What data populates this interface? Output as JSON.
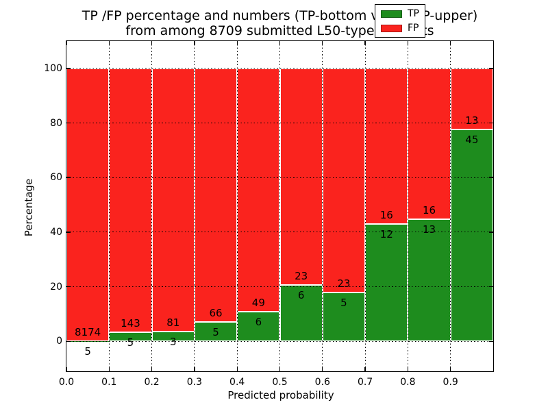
{
  "title": {
    "line1": "TP /FP percentage and numbers (TP-bottom value, FP-upper)",
    "line2": "from among 8709 submitted L50-type contacts"
  },
  "axes": {
    "ylabel": "Percentage",
    "xlabel": "Predicted probability",
    "ytick_labels": [
      "0",
      "20",
      "40",
      "60",
      "80",
      "100"
    ],
    "xtick_labels": [
      "0.0",
      "0.1",
      "0.2",
      "0.3",
      "0.4",
      "0.5",
      "0.6",
      "0.7",
      "0.8",
      "0.9"
    ]
  },
  "legend": {
    "items": [
      {
        "label": "TP",
        "color": "#1e8c1e"
      },
      {
        "label": "FP",
        "color": "#fa231e"
      }
    ]
  },
  "colors": {
    "tp_green": "#1e8c1e",
    "fp_red": "#fa231e",
    "bar_edge": "#ffffff",
    "grid": "#000000",
    "background": "#ffffff"
  },
  "chart_data": {
    "type": "bar",
    "subtype": "stacked-percentage",
    "title": "TP /FP percentage and numbers (TP-bottom value, FP-upper) from among 8709 submitted L50-type contacts",
    "xlabel": "Predicted probability",
    "ylabel": "Percentage",
    "total_submitted": 8709,
    "xlim": [
      0.0,
      1.0
    ],
    "ylim": [
      -11,
      110
    ],
    "yticks": [
      0,
      20,
      40,
      60,
      80,
      100
    ],
    "xticks": [
      0.0,
      0.1,
      0.2,
      0.3,
      0.4,
      0.5,
      0.6,
      0.7,
      0.8,
      0.9
    ],
    "grid": true,
    "grid_style": "dotted",
    "legend_position": "upper-right",
    "categories": [
      "0.0-0.1",
      "0.1-0.2",
      "0.2-0.3",
      "0.3-0.4",
      "0.4-0.5",
      "0.5-0.6",
      "0.6-0.7",
      "0.7-0.8",
      "0.8-0.9",
      "0.9-1.0"
    ],
    "series": [
      {
        "name": "TP",
        "counts": [
          5,
          5,
          3,
          5,
          6,
          6,
          5,
          12,
          13,
          45
        ],
        "pct": [
          0.06,
          3.38,
          3.57,
          7.04,
          10.91,
          20.69,
          17.86,
          42.86,
          44.83,
          77.59
        ]
      },
      {
        "name": "FP",
        "counts": [
          8174,
          143,
          81,
          66,
          49,
          23,
          23,
          16,
          16,
          13
        ],
        "pct": [
          99.94,
          96.62,
          96.43,
          92.96,
          89.09,
          79.31,
          82.14,
          57.14,
          55.17,
          22.41
        ]
      }
    ]
  }
}
